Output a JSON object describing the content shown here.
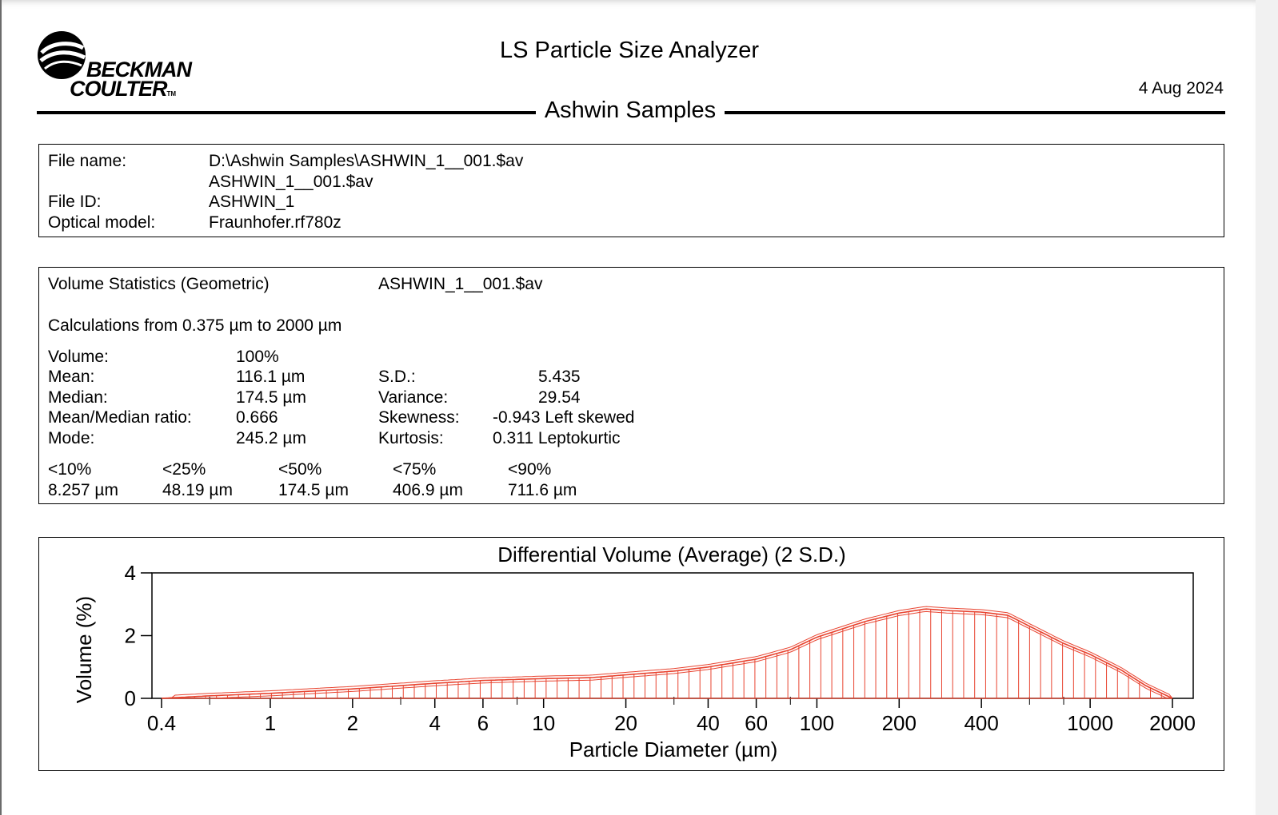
{
  "header": {
    "brand_line1": "BECKMAN",
    "brand_line2": "COULTER",
    "brand_tm": "TM",
    "app_title": "LS Particle Size Analyzer",
    "date": "4 Aug 2024",
    "section_title": "Ashwin Samples"
  },
  "file_info": {
    "file_name_label": "File name:",
    "file_name_value": "D:\\Ashwin Samples\\ASHWIN_1__001.$av",
    "file_name_value2": "ASHWIN_1__001.$av",
    "file_id_label": "File ID:",
    "file_id_value": "ASHWIN_1",
    "optical_model_label": "Optical model:",
    "optical_model_value": "Fraunhofer.rf780z"
  },
  "stats": {
    "heading": "Volume Statistics (Geometric)",
    "heading_file": "ASHWIN_1__001.$av",
    "calc_range": "Calculations from 0.375 µm to 2000 µm",
    "volume_label": "Volume:",
    "volume_value": "100%",
    "mean_label": "Mean:",
    "mean_value": "116.1 µm",
    "median_label": "Median:",
    "median_value": "174.5 µm",
    "ratio_label": "Mean/Median ratio:",
    "ratio_value": "0.666",
    "mode_label": "Mode:",
    "mode_value": "245.2 µm",
    "sd_label": "S.D.:",
    "sd_value": "5.435",
    "variance_label": "Variance:",
    "variance_value": "29.54",
    "skewness_label": "Skewness:",
    "skewness_value": "-0.943 Left skewed",
    "kurtosis_label": "Kurtosis:",
    "kurtosis_value": "0.311 Leptokurtic",
    "percentiles": [
      {
        "label": "<10%",
        "value": "8.257 µm"
      },
      {
        "label": "<25%",
        "value": "48.19 µm"
      },
      {
        "label": "<50%",
        "value": "174.5 µm"
      },
      {
        "label": "<75%",
        "value": "406.9 µm"
      },
      {
        "label": "<90%",
        "value": "711.6 µm"
      }
    ]
  },
  "chart_data": {
    "type": "area",
    "title": "Differential Volume (Average) (2 S.D.)",
    "xlabel": "Particle Diameter (µm)",
    "ylabel": "Volume (%)",
    "x_scale": "log",
    "xlim": [
      0.4,
      2000
    ],
    "ylim": [
      0,
      4
    ],
    "x_ticks": [
      0.4,
      1,
      2,
      4,
      6,
      10,
      20,
      40,
      60,
      100,
      200,
      400,
      1000,
      2000
    ],
    "x_tick_labels": [
      "0.4",
      "1",
      "2",
      "4",
      "6",
      "10",
      "20",
      "40",
      "60",
      "100",
      "200",
      "400",
      "1000",
      "2000"
    ],
    "y_ticks": [
      0,
      2,
      4
    ],
    "y_tick_labels": [
      "0",
      "2",
      "4"
    ],
    "grid": false,
    "line_color": "#e8432f",
    "series": [
      {
        "x": [
          0.4,
          0.6,
          1,
          2,
          4,
          6,
          10,
          15,
          20,
          30,
          40,
          60,
          80,
          100,
          150,
          200,
          250,
          300,
          400,
          500,
          600,
          800,
          1000,
          1300,
          1600,
          2000
        ],
        "y": [
          0.0,
          0.08,
          0.16,
          0.3,
          0.48,
          0.57,
          0.63,
          0.66,
          0.75,
          0.87,
          1.0,
          1.25,
          1.55,
          1.95,
          2.45,
          2.72,
          2.85,
          2.8,
          2.75,
          2.65,
          2.3,
          1.75,
          1.4,
          0.9,
          0.4,
          0.0
        ]
      }
    ],
    "sd_band": 0.08
  }
}
